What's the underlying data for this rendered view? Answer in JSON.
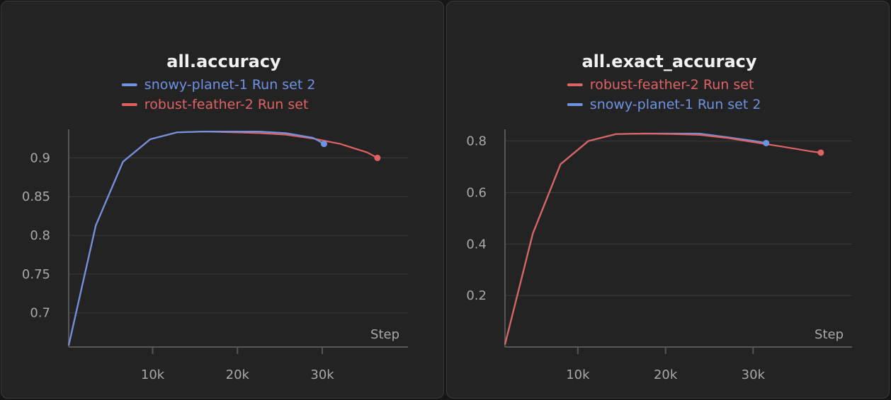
{
  "panels": [
    {
      "title": "all.accuracy",
      "legend": [
        "snowy-planet-1 Run set 2",
        "robust-feather-2 Run set"
      ]
    },
    {
      "title": "all.exact_accuracy",
      "legend": [
        "robust-feather-2 Run set",
        "snowy-planet-1 Run set 2"
      ]
    }
  ],
  "colors": {
    "blue": "#6f93e3",
    "red": "#e06363"
  },
  "chart_data": [
    {
      "type": "line",
      "title": "all.accuracy",
      "xlabel": "Step",
      "ylabel": "",
      "xlim": [
        0,
        40000
      ],
      "ylim": [
        0.656,
        0.935
      ],
      "xticks": [
        "10k",
        "20k",
        "30k"
      ],
      "yticks": [
        "0.7",
        "0.75",
        "0.8",
        "0.85",
        "0.9"
      ],
      "legend_position": "top-center",
      "grid": true,
      "series": [
        {
          "name": "snowy-planet-1 Run set 2",
          "color": "#6f93e3",
          "x": [
            0,
            3200,
            6400,
            9600,
            12800,
            16000,
            19200,
            22400,
            25600,
            28800,
            30100
          ],
          "y": [
            0.658,
            0.813,
            0.895,
            0.924,
            0.933,
            0.934,
            0.934,
            0.934,
            0.932,
            0.926,
            0.918
          ]
        },
        {
          "name": "robust-feather-2 Run set",
          "color": "#e06363",
          "x": [
            0,
            3200,
            6400,
            9600,
            12800,
            16000,
            19200,
            22400,
            25600,
            28800,
            32000,
            35200,
            36400
          ],
          "y": [
            0.658,
            0.813,
            0.895,
            0.924,
            0.933,
            0.934,
            0.933,
            0.932,
            0.93,
            0.925,
            0.918,
            0.907,
            0.9
          ]
        }
      ]
    },
    {
      "type": "line",
      "title": "all.exact_accuracy",
      "xlabel": "Step",
      "ylabel": "",
      "xlim": [
        0,
        40000
      ],
      "ylim": [
        0.0,
        0.84
      ],
      "xticks": [
        "10k",
        "20k",
        "30k"
      ],
      "yticks": [
        "0.2",
        "0.4",
        "0.6",
        "0.8"
      ],
      "legend_position": "top-center",
      "grid": true,
      "series": [
        {
          "name": "robust-feather-2 Run set",
          "color": "#e06363",
          "x": [
            0,
            3200,
            6400,
            9600,
            12800,
            16000,
            19200,
            22400,
            25600,
            28800,
            32000,
            35200,
            36400
          ],
          "y": [
            0.01,
            0.44,
            0.71,
            0.8,
            0.827,
            0.829,
            0.827,
            0.824,
            0.812,
            0.795,
            0.778,
            0.76,
            0.755
          ]
        },
        {
          "name": "snowy-planet-1 Run set 2",
          "color": "#6f93e3",
          "x": [
            0,
            3200,
            6400,
            9600,
            12800,
            16000,
            19200,
            22400,
            25600,
            28800,
            30100
          ],
          "y": [
            0.01,
            0.44,
            0.71,
            0.8,
            0.827,
            0.829,
            0.829,
            0.829,
            0.815,
            0.8,
            0.792
          ]
        }
      ]
    }
  ]
}
